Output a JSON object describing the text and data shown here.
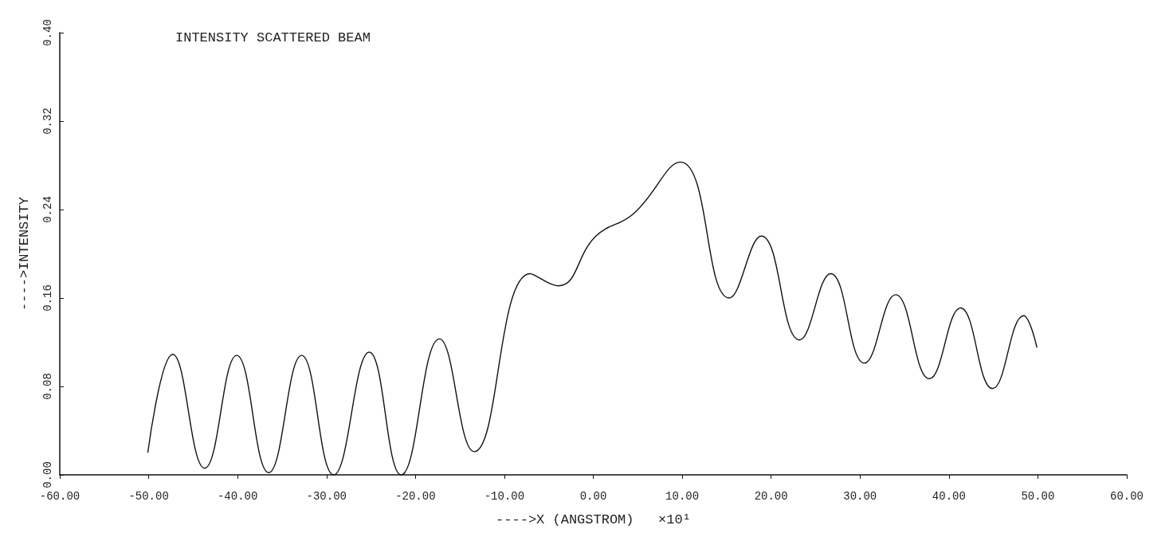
{
  "chart_data": {
    "type": "line",
    "title": "INTENSITY SCATTERED BEAM",
    "xlabel": "---->X (ANGSTROM)   ×10¹",
    "ylabel": "---->INTENSITY",
    "x": [
      -50.1,
      -47.3,
      -43.7,
      -40.1,
      -36.5,
      -32.8,
      -29.2,
      -25.2,
      -21.6,
      -17.3,
      -13.4,
      -7.1,
      -3.95,
      0.3,
      4.5,
      9.8,
      15.3,
      18.9,
      23.2,
      26.7,
      30.5,
      34.0,
      37.8,
      41.3,
      44.9,
      48.4,
      49.9
    ],
    "values": [
      0.02,
      0.109,
      0.006,
      0.108,
      0.002,
      0.108,
      0.0,
      0.111,
      0.0,
      0.123,
      0.021,
      0.182,
      0.171,
      0.216,
      0.236,
      0.283,
      0.16,
      0.216,
      0.122,
      0.182,
      0.101,
      0.163,
      0.087,
      0.151,
      0.078,
      0.144,
      0.115
    ],
    "color": "#111111",
    "xlim": [
      -60,
      60
    ],
    "xticks": [
      {
        "value": -60,
        "label": "-60.00"
      },
      {
        "value": -50,
        "label": "-50.00"
      },
      {
        "value": -40,
        "label": "-40.00"
      },
      {
        "value": -30,
        "label": "-30.00"
      },
      {
        "value": -20,
        "label": "-20.00"
      },
      {
        "value": -10,
        "label": "-10.00"
      },
      {
        "value": 0,
        "label": "0.00"
      },
      {
        "value": 10,
        "label": "10.00"
      },
      {
        "value": 20,
        "label": "20.00"
      },
      {
        "value": 30,
        "label": "30.00"
      },
      {
        "value": 40,
        "label": "40.00"
      },
      {
        "value": 50,
        "label": "50.00"
      },
      {
        "value": 60,
        "label": "60.00"
      }
    ],
    "ylim": [
      0,
      0.4
    ],
    "yticks": [
      {
        "value": 0,
        "label": "0.00"
      },
      {
        "value": 0.08,
        "label": "0.08"
      },
      {
        "value": 0.16,
        "label": "0.16"
      },
      {
        "value": 0.24,
        "label": "0.24"
      },
      {
        "value": 0.32,
        "label": "0.32"
      },
      {
        "value": 0.4,
        "label": "0.40"
      }
    ],
    "grid": false
  }
}
